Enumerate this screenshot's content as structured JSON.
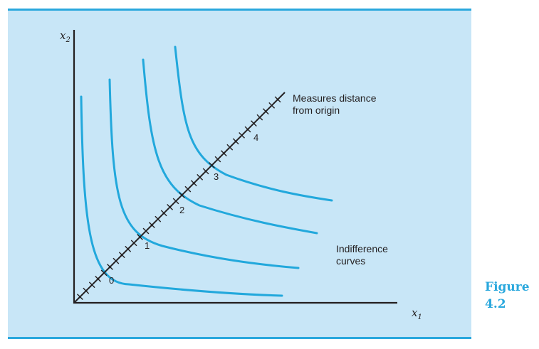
{
  "colors": {
    "panel_bg": "#c8e6f7",
    "rule": "#2aa8dd",
    "curve": "#22a8dc",
    "axis": "#231f20",
    "caption": "#2aa8dd"
  },
  "figure": {
    "word": "Figure",
    "number": "4.2"
  },
  "axes": {
    "x_label": "x",
    "x_sub": "1",
    "y_label": "x",
    "y_sub": "2"
  },
  "ray": {
    "label_line1": "Measures distance",
    "label_line2": "from origin",
    "ticks": [
      "0",
      "1",
      "2",
      "3",
      "4"
    ]
  },
  "curves_label": {
    "line1": "Indifference",
    "line2": "curves"
  },
  "chart_data": {
    "type": "diagram",
    "curves": [
      {
        "utility_index": 0
      },
      {
        "utility_index": 1
      },
      {
        "utility_index": 2
      },
      {
        "utility_index": 3
      }
    ]
  }
}
